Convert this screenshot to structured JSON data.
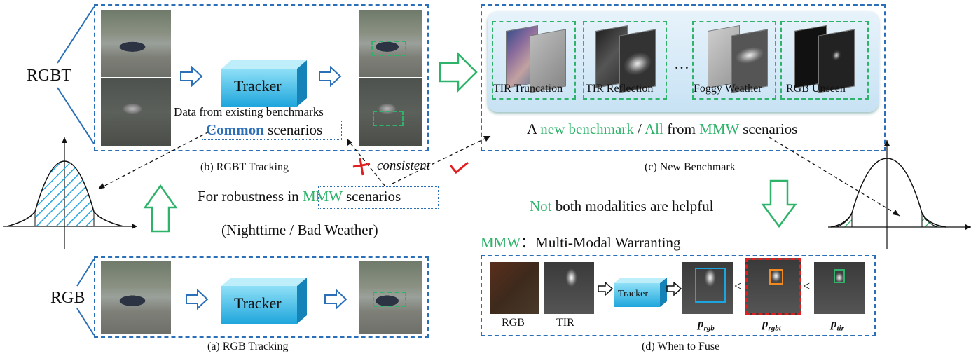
{
  "rgbt_label": "RGBT",
  "rgb_label": "RGB",
  "tracker_label": "Tracker",
  "tracker_small_label": "Tracker",
  "panel_b": {
    "data_text": "Data from existing benchmarks",
    "common_word": "Common",
    "scenarios_word": " scenarios",
    "caption": "(b) RGBT Tracking"
  },
  "panel_a": {
    "caption": "(a) RGB Tracking"
  },
  "panel_c": {
    "tiles": [
      "TIR Truncation",
      "TIR Reflection",
      "Foggy Weather",
      "RGB Unseen"
    ],
    "ellipsis": "…",
    "sentence_a": "A ",
    "sentence_green1": "new benchmark",
    "sentence_b": " / ",
    "sentence_green2": "All",
    "sentence_c": " from ",
    "sentence_green3": "MMW",
    "sentence_d": " scenarios",
    "caption": "(c) New Benchmark"
  },
  "consistent": "consistent",
  "robustness": {
    "prefix": "For robustness in ",
    "mmw": "MMW",
    "suffix": " scenarios"
  },
  "conditions": "(Nighttime / Bad Weather)",
  "not_helpful": {
    "not": "Not",
    "rest": " both modalities are helpful"
  },
  "mmw_def": {
    "abbr": "MMW",
    "colon": "：",
    "full": "Multi-Modal Warranting"
  },
  "panel_d": {
    "rgb_label": "RGB",
    "tir_label": "TIR",
    "p_rgb": "p",
    "p_rgb_sub": "rgb",
    "p_rgbt": "p",
    "p_rgbt_sub": "rgbt",
    "p_tir": "p",
    "p_tir_sub": "tir",
    "lt": "<",
    "caption": "(d) When to Fuse"
  },
  "colors": {
    "blue": "#2a6fb7",
    "green": "#2fb36a",
    "red": "#e02020"
  }
}
